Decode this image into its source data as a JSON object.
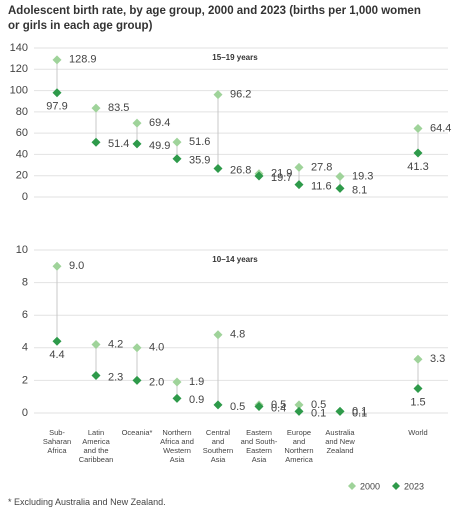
{
  "chart_data": {
    "type": "dot",
    "title": "Adolescent birth rate, by age group, 2000 and 2023 (births per 1,000 women or girls in each age group)",
    "categories": [
      "Sub-\nSaharan\nAfrica",
      "Latin\nAmerica\nand the\nCaribbean",
      "Oceania*",
      "Northern\nAfrica and\nWestern\nAsia",
      "Central\nand\nSouthern\nAsia",
      "Eastern\nand South-\nEastern\nAsia",
      "Europe\nand\nNorthern\nAmerica",
      "Australia\nand New\nZealand",
      "World"
    ],
    "series": [
      {
        "name": "2000",
        "color": "#9fd39a"
      },
      {
        "name": "2023",
        "color": "#2e9a4a"
      }
    ],
    "panels": [
      {
        "subtitle": "15–19 years",
        "ylim": [
          0,
          140
        ],
        "yticks": [
          0,
          20,
          40,
          60,
          80,
          100,
          120,
          140
        ],
        "values": [
          [
            128.9,
            83.5,
            69.4,
            51.6,
            96.2,
            21.9,
            27.8,
            19.3,
            64.4
          ],
          [
            97.9,
            51.4,
            49.9,
            35.9,
            26.8,
            19.7,
            11.6,
            8.1,
            41.3
          ]
        ]
      },
      {
        "subtitle": "10–14 years",
        "ylim": [
          0,
          10
        ],
        "yticks": [
          0,
          2,
          4,
          6,
          8,
          10
        ],
        "values": [
          [
            9,
            4.2,
            4,
            1.9,
            4.8,
            0.5,
            0.5,
            0.1,
            3.3
          ],
          [
            4.4,
            2.3,
            2,
            0.9,
            0.5,
            0.4,
            0.1,
            0.1,
            1.5
          ]
        ],
        "value_labels": [
          [
            "9.0",
            "4.2",
            "4.0",
            "1.9",
            "4.8",
            "0.5",
            "0.5",
            "0.1",
            "3.3"
          ],
          [
            "4.4",
            "2.3",
            "2.0",
            "0.9",
            "0.5",
            "0.4",
            "0.1",
            "0.1",
            "1.5"
          ]
        ]
      }
    ],
    "grid": true,
    "footnote": "* Excluding Australia and New Zealand."
  }
}
